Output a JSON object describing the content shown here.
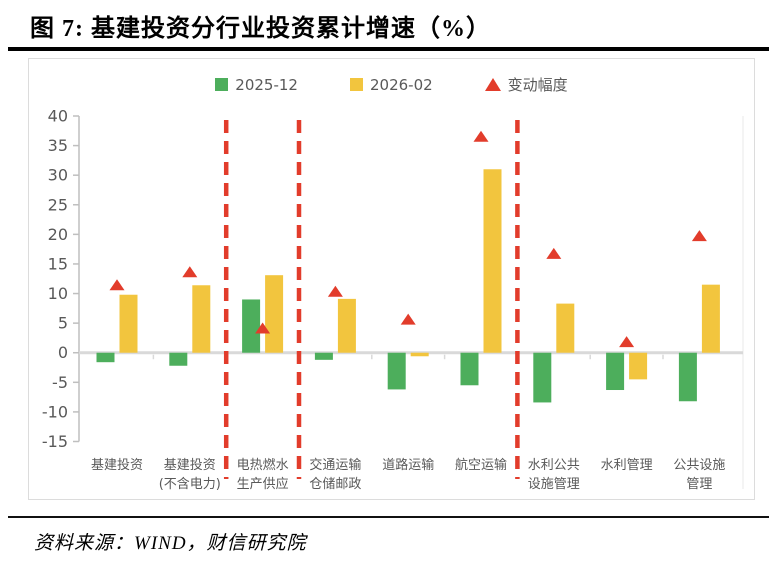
{
  "title": "图 7: 基建投资分行业投资累计增速（%）",
  "source": "资料来源：WIND，财信研究院",
  "legend": {
    "items": [
      {
        "label": "2025-12",
        "swatch": "square",
        "color": "#4dae5c"
      },
      {
        "label": "2026-02",
        "swatch": "square",
        "color": "#f2c53e"
      },
      {
        "label": "变动幅度",
        "swatch": "triangle",
        "color": "#e23c2b"
      }
    ],
    "position": "top"
  },
  "chart_data": {
    "type": "bar",
    "title": "基建投资分行业投资累计增速（%）",
    "categories": [
      "基建投资",
      "基建投资\n(不含电力)",
      "电热燃水\n生产供应",
      "交通运输\n仓储邮政",
      "道路运输",
      "航空运输",
      "水利公共\n设施管理",
      "水利管理",
      "公共设施\n管理"
    ],
    "series": [
      {
        "name": "2025-12",
        "type": "bar",
        "color": "#4dae5c",
        "values": [
          -1.6,
          -2.2,
          9.0,
          -1.2,
          -6.2,
          -5.5,
          -8.4,
          -6.3,
          -8.2
        ]
      },
      {
        "name": "2026-02",
        "type": "bar",
        "color": "#f2c53e",
        "values": [
          9.8,
          11.4,
          13.1,
          9.1,
          -0.6,
          31.0,
          8.3,
          -4.5,
          11.5
        ]
      },
      {
        "name": "变动幅度",
        "type": "triangle-marker",
        "color": "#e23c2b",
        "values": [
          11.4,
          13.6,
          4.1,
          10.3,
          5.6,
          36.5,
          16.7,
          1.8,
          19.7
        ]
      }
    ],
    "ylim": [
      -15,
      40
    ],
    "ytick_step": 5,
    "grid": false,
    "legend_position": "top",
    "separators_after_category": [
      2,
      3,
      6
    ],
    "separator_style": "dashed",
    "separator_color": "#e23c2b",
    "axis_text_color": "#595959",
    "axis_line_color": "#bfbfbf",
    "zero_line_color": "#d9d9d9"
  }
}
